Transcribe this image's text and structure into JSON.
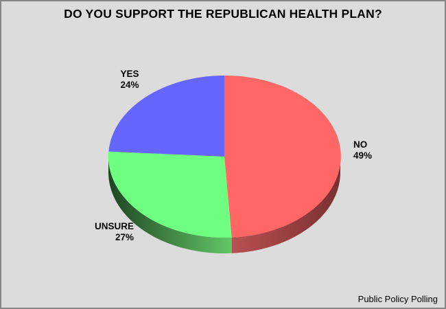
{
  "window": {
    "background_color": "#dcdcdc",
    "border_color": "#858585"
  },
  "chart_data": {
    "type": "pie",
    "style": "3d",
    "title": "DO YOU SUPPORT THE REPUBLICAN HEALTH PLAN?",
    "direction": "clockwise",
    "start_angle_deg": 0,
    "legend_position": "none",
    "labels_show_percent": true,
    "slices": [
      {
        "label": "NO",
        "value": 49,
        "color": "#ff6666",
        "side_from": "#b85151",
        "side_to": "#7a3030"
      },
      {
        "label": "UNSURE",
        "value": 27,
        "color": "#6fff80",
        "side_from": "#1f4522",
        "side_to": "#62c766"
      },
      {
        "label": "YES",
        "value": 24,
        "color": "#6666ff",
        "side_from": "#4d4dc0",
        "side_to": "#4d4dc0"
      }
    ]
  },
  "footer": {
    "source_label": "Public Policy Polling"
  }
}
